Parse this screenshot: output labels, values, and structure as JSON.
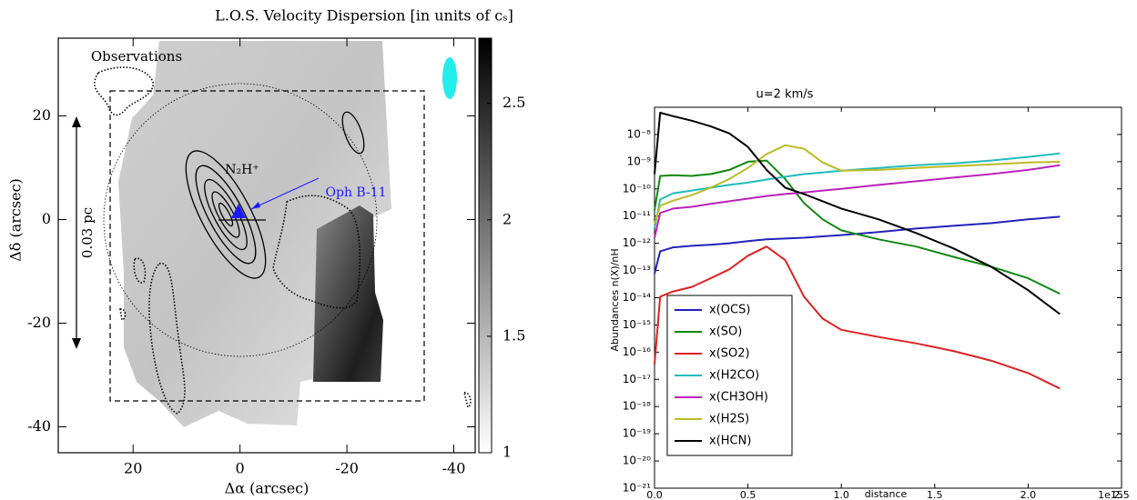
{
  "chart_data": [
    {
      "type": "image",
      "title": "L.O.S. Velocity Dispersion [in units of cₛ]",
      "xlabel": "Δα (arcsec)",
      "ylabel": "Δδ (arcsec)",
      "annotations": [
        "Observations",
        "N₂H⁺",
        "Oph B-11",
        "0.03 pc"
      ],
      "xlim": [
        34,
        -44
      ],
      "ylim": [
        -45,
        35
      ],
      "xticks": [
        20,
        0,
        -20,
        -40
      ],
      "yticks": [
        20,
        0,
        -20,
        -40
      ],
      "colorbar": {
        "lim": [
          1,
          2.78
        ],
        "ticks": [
          1,
          1.5,
          2,
          2.5
        ],
        "colormap": "gray_r"
      }
    },
    {
      "type": "line",
      "title": "u=2 km/s",
      "xlabel": "distance",
      "ylabel": "Abundances n(X)/nH",
      "offset_label": "1e15",
      "log_y": true,
      "grid": false,
      "legend": "lower left",
      "xlim": [
        0,
        2.5
      ],
      "xticks": [
        {
          "value": 0,
          "label": "0.0"
        },
        0.5,
        {
          "value": 1,
          "label": "1.0"
        },
        1.5,
        {
          "value": 2,
          "label": "2.0"
        },
        2.5
      ],
      "ylim": [
        1e-21,
        1e-07
      ],
      "yticks": [
        {
          "value": 1e-21,
          "label": "10⁻²¹"
        },
        {
          "value": 1e-20,
          "label": "10⁻²⁰"
        },
        {
          "value": 1e-19,
          "label": "10⁻¹⁹"
        },
        {
          "value": 1e-18,
          "label": "10⁻¹⁸"
        },
        {
          "value": 1e-17,
          "label": "10⁻¹⁷"
        },
        {
          "value": 1e-16,
          "label": "10⁻¹⁶"
        },
        {
          "value": 1e-15,
          "label": "10⁻¹⁵"
        },
        {
          "value": 1e-14,
          "label": "10⁻¹⁴"
        },
        {
          "value": 1e-13,
          "label": "10⁻¹³"
        },
        {
          "value": 1e-12,
          "label": "10⁻¹²"
        },
        {
          "value": 1e-11,
          "label": "10⁻¹¹"
        },
        {
          "value": 1e-10,
          "label": "10⁻¹⁰"
        },
        {
          "value": 1e-09,
          "label": "10⁻⁹"
        },
        {
          "value": 1e-08,
          "label": "10⁻⁸"
        }
      ],
      "x": [
        0,
        0.03,
        0.1,
        0.2,
        0.3,
        0.4,
        0.5,
        0.6,
        0.7,
        0.8,
        0.9,
        1.0,
        1.2,
        1.4,
        1.6,
        1.8,
        2.0,
        2.17
      ],
      "series": [
        {
          "name": "x(OCS)",
          "color": "#2222bb",
          "values": [
            7.6e-14,
            5.1e-13,
            7.1e-13,
            8.1e-13,
            8.9e-13,
            1e-12,
            1.2e-12,
            1.4e-12,
            1.5e-12,
            1.6e-12,
            1.8e-12,
            2e-12,
            2.6e-12,
            3.5e-12,
            4.4e-12,
            5.5e-12,
            7.6e-12,
            9.5e-12
          ]
        },
        {
          "name": "x(SO)",
          "color": "#118811",
          "values": [
            1.6e-11,
            3e-10,
            3.2e-10,
            3e-10,
            3.5e-10,
            5e-10,
            1e-09,
            1.1e-09,
            2.3e-10,
            3e-11,
            7.6e-12,
            3e-12,
            1.4e-12,
            7.6e-13,
            3.2e-13,
            1.4e-13,
            5.2e-14,
            1.4e-14
          ]
        },
        {
          "name": "x(SO2)",
          "color": "#dd2222",
          "values": [
            3.6e-17,
            1.1e-14,
            1.7e-14,
            2.5e-14,
            5.2e-14,
            1.1e-13,
            3.5e-13,
            7.6e-13,
            2.4e-13,
            1.1e-14,
            1.7e-15,
            6.6e-16,
            3.6e-16,
            2.1e-16,
            1.1e-16,
            4.9e-17,
            1.7e-17,
            4.6e-18
          ]
        },
        {
          "name": "x(H2CO)",
          "color": "#22bbbb",
          "values": [
            3.5e-12,
            4.1e-11,
            6.9e-11,
            8.7e-11,
            1.1e-10,
            1.4e-10,
            1.7e-10,
            2.2e-10,
            2.8e-10,
            3.5e-10,
            4e-10,
            4.7e-10,
            5.9e-10,
            7.4e-10,
            8.7e-10,
            1.1e-09,
            1.5e-09,
            2e-09
          ]
        },
        {
          "name": "x(CH3OH)",
          "color": "#bb22bb",
          "values": [
            1.6e-12,
            1.3e-11,
            1.9e-11,
            2.2e-11,
            2.8e-11,
            3.5e-11,
            4.4e-11,
            5.5e-11,
            6.5e-11,
            7.4e-11,
            8.7e-11,
            1e-10,
            1.4e-10,
            1.9e-10,
            2.6e-10,
            3.5e-10,
            5e-10,
            7.4e-10
          ]
        },
        {
          "name": "x(H2S)",
          "color": "#bbbb22",
          "values": [
            5.1e-12,
            2.4e-11,
            3.7e-11,
            5.9e-11,
            1.1e-10,
            2.3e-10,
            5.9e-10,
            1.9e-09,
            4e-09,
            3e-09,
            9.3e-10,
            4.7e-10,
            5e-10,
            5.9e-10,
            6.9e-10,
            7.9e-10,
            9.3e-10,
            1e-09
          ]
        },
        {
          "name": "x(HCN)",
          "color": "#000000",
          "values": [
            3.5e-10,
            6.3e-08,
            4.7e-08,
            3.2e-08,
            2e-08,
            1.1e-08,
            3.5e-09,
            5e-10,
            1.1e-10,
            6.5e-11,
            3.5e-11,
            1.9e-11,
            7.6e-12,
            2.4e-12,
            6.5e-13,
            1.4e-13,
            1.9e-14,
            2.5e-15
          ]
        }
      ]
    }
  ]
}
